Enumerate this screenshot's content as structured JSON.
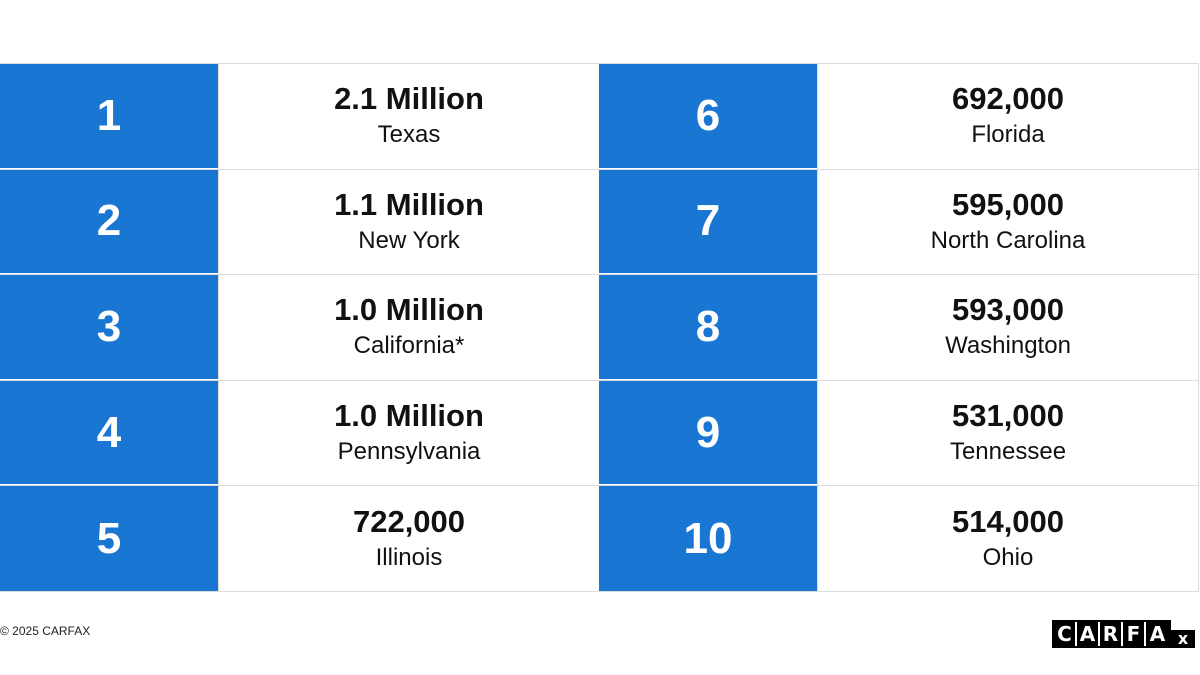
{
  "rankings": {
    "left": [
      {
        "rank": "1",
        "value": "2.1 Million",
        "state": "Texas"
      },
      {
        "rank": "2",
        "value": "1.1 Million",
        "state": "New York"
      },
      {
        "rank": "3",
        "value": "1.0 Million",
        "state": "California*"
      },
      {
        "rank": "4",
        "value": "1.0 Million",
        "state": "Pennsylvania"
      },
      {
        "rank": "5",
        "value": "722,000",
        "state": "Illinois"
      }
    ],
    "right": [
      {
        "rank": "6",
        "value": "692,000",
        "state": "Florida"
      },
      {
        "rank": "7",
        "value": "595,000",
        "state": "North Carolina"
      },
      {
        "rank": "8",
        "value": "593,000",
        "state": "Washington"
      },
      {
        "rank": "9",
        "value": "531,000",
        "state": "Tennessee"
      },
      {
        "rank": "10",
        "value": "514,000",
        "state": "Ohio"
      }
    ]
  },
  "footer": {
    "copyright": "© 2025 CARFAX",
    "logo_letters": [
      "C",
      "A",
      "R",
      "F",
      "A"
    ],
    "logo_x": "x"
  },
  "colors": {
    "rank_background": "#1976d2",
    "rank_text": "#ffffff",
    "border": "#dcdcdc"
  }
}
